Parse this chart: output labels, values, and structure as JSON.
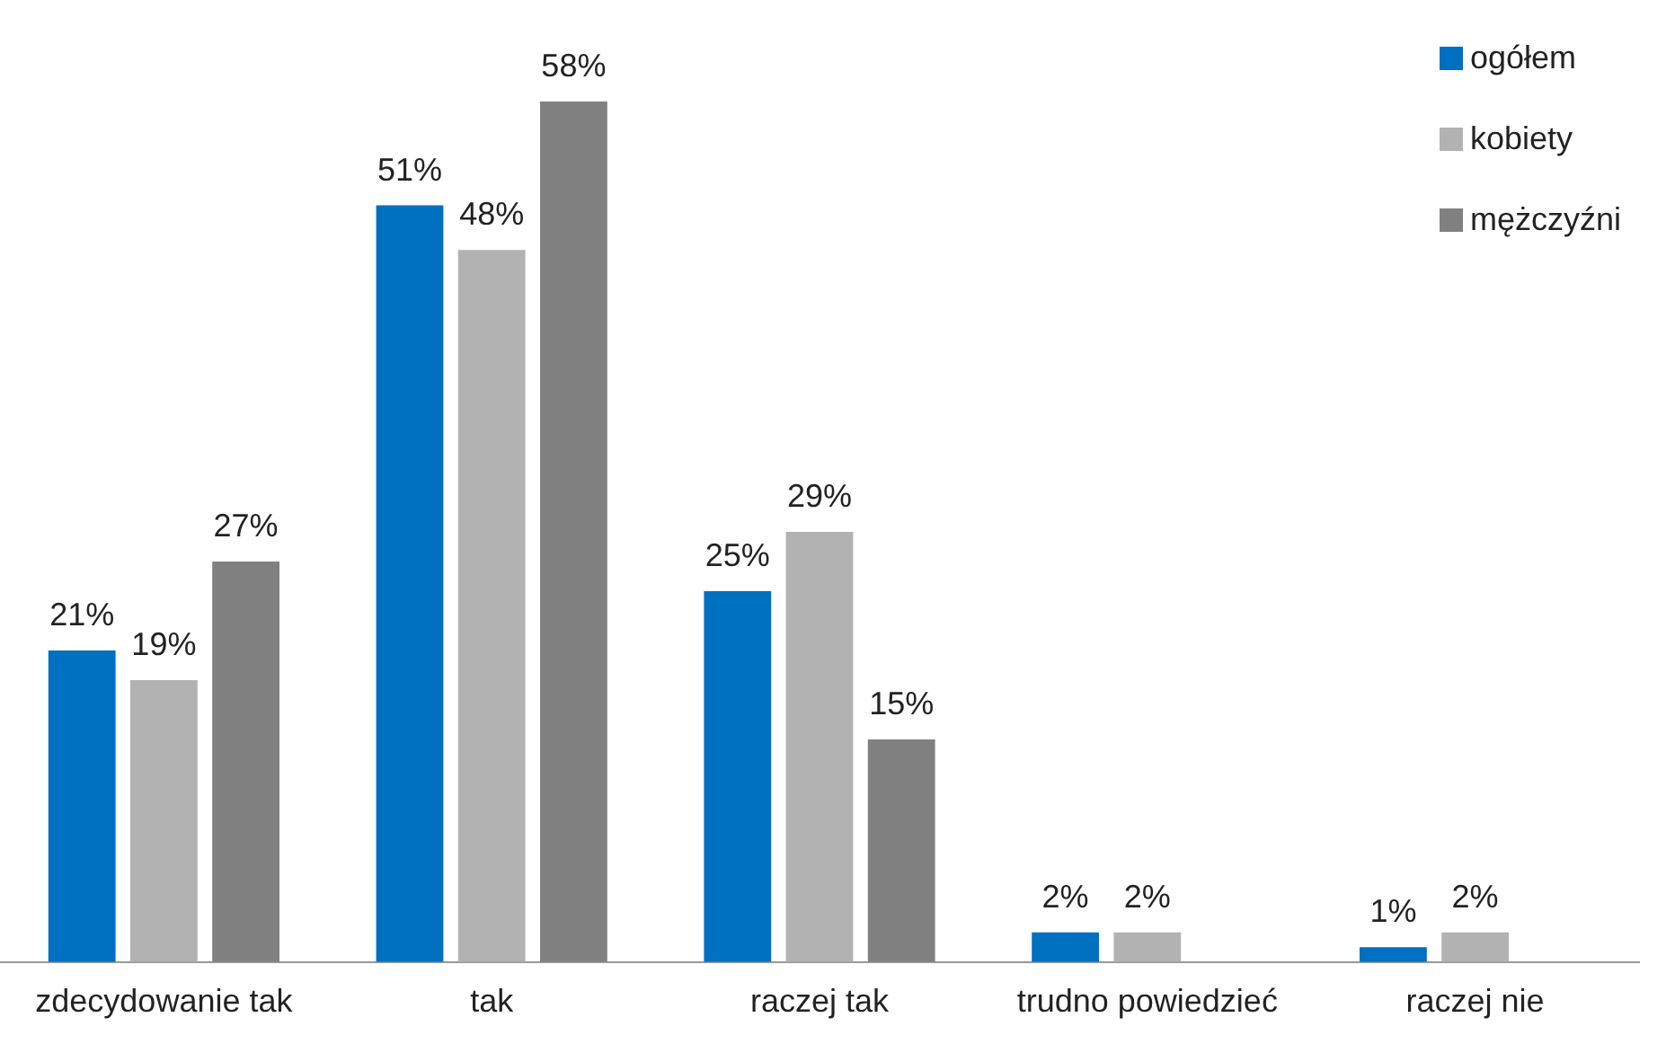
{
  "chart_data": {
    "type": "bar",
    "categories": [
      "zdecydowanie tak",
      "tak",
      "raczej tak",
      "trudno powiedzieć",
      "raczej nie"
    ],
    "series": [
      {
        "name": "ogółem",
        "color": "#0070c0",
        "values": [
          21,
          51,
          25,
          2,
          1
        ],
        "value_labels": [
          "21%",
          "51%",
          "25%",
          "2%",
          "1%"
        ]
      },
      {
        "name": "kobiety",
        "color": "#b2b2b2",
        "values": [
          19,
          48,
          29,
          2,
          2
        ],
        "value_labels": [
          "19%",
          "48%",
          "29%",
          "2%",
          "2%"
        ]
      },
      {
        "name": "mężczyźni",
        "color": "#808080",
        "values": [
          27,
          58,
          15,
          null,
          null
        ],
        "value_labels": [
          "27%",
          "58%",
          "15%",
          null,
          null
        ]
      }
    ],
    "tick_labels": "x",
    "legend": "top right"
  }
}
